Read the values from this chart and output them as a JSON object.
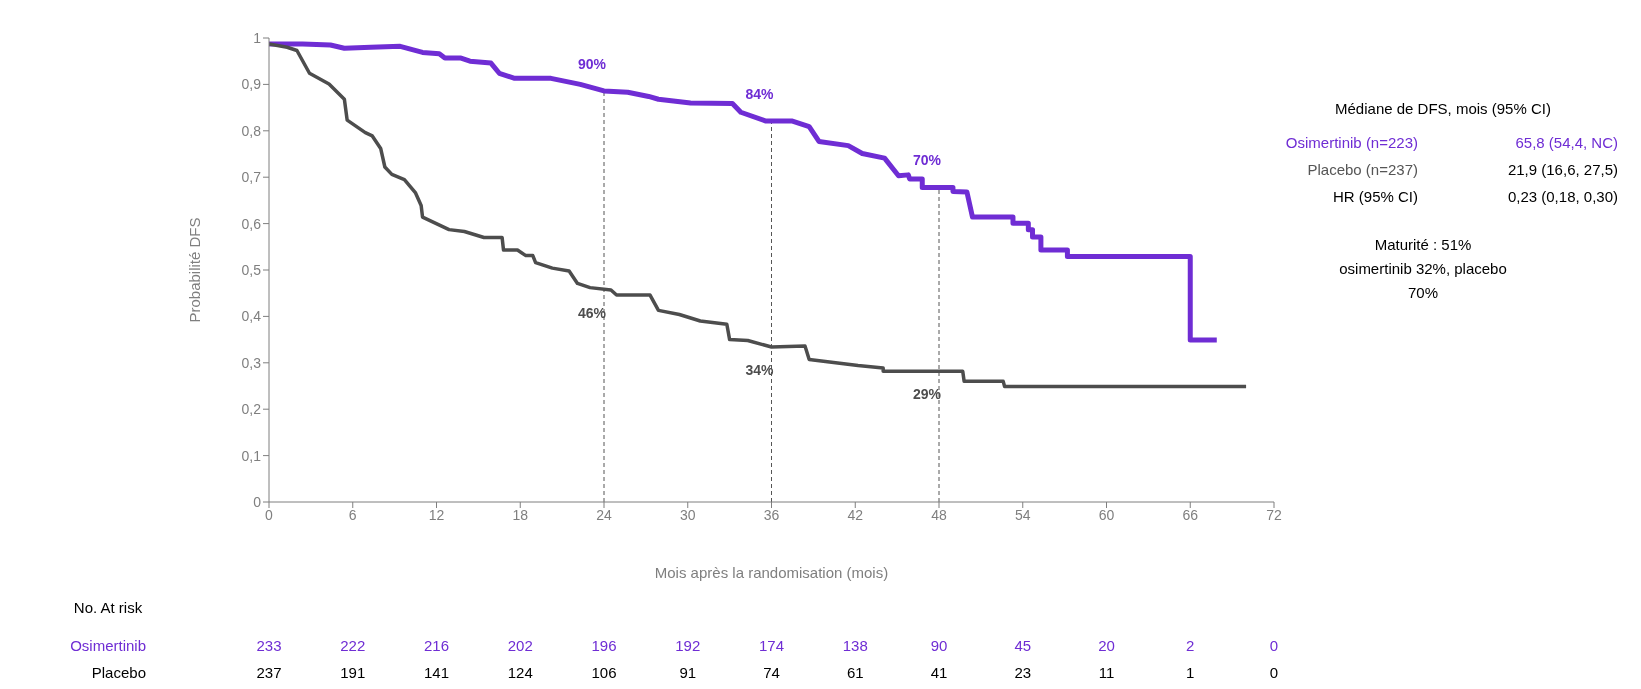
{
  "chart_data": {
    "type": "line",
    "xlabel": "Mois après la randomisation (mois)",
    "ylabel": "Probabilité DFS",
    "xlim": [
      0,
      72
    ],
    "ylim": [
      0,
      1
    ],
    "xticks": [
      0,
      6,
      12,
      18,
      24,
      30,
      36,
      42,
      48,
      54,
      60,
      66,
      72
    ],
    "yticks": [
      0,
      {
        "value": 0.1,
        "label": "0,1"
      },
      {
        "value": 0.2,
        "label": "0,2"
      },
      {
        "value": 0.3,
        "label": "0,3"
      },
      {
        "value": 0.4,
        "label": "0,4"
      },
      {
        "value": 0.5,
        "label": "0,5"
      },
      {
        "value": 0.6,
        "label": "0,6"
      },
      {
        "value": 0.7,
        "label": "0,7"
      },
      {
        "value": 0.8,
        "label": "0,8"
      },
      {
        "value": 0.9,
        "label": "0,9"
      },
      1
    ],
    "grid": false,
    "marker": "none",
    "line_style": "solid",
    "series": [
      {
        "color": "#6f2dd4",
        "x": [
          0,
          2.4,
          4.4,
          5.4,
          7.3,
          9.4,
          11,
          12.2,
          12.6,
          13.7,
          14.4,
          15.9,
          16.5,
          17.6,
          20.2,
          22.3,
          24,
          25.7,
          27.2,
          27.9,
          30.2,
          33.2,
          33.8,
          35.6,
          37.5,
          38.7,
          39.4,
          41.5,
          42.5,
          44.1,
          45.1,
          45.8,
          45.9,
          46.8,
          46.8,
          49,
          49,
          50,
          50.4,
          53.3,
          53.3,
          54.4,
          54.4,
          54.7,
          54.7,
          55.3,
          55.3,
          57.2,
          57.2,
          66,
          66,
          67.9
        ],
        "values": [
          0.987,
          0.987,
          0.985,
          0.978,
          0.98,
          0.982,
          0.969,
          0.966,
          0.957,
          0.957,
          0.95,
          0.946,
          0.924,
          0.913,
          0.913,
          0.9,
          0.886,
          0.883,
          0.874,
          0.868,
          0.86,
          0.859,
          0.84,
          0.821,
          0.821,
          0.809,
          0.777,
          0.768,
          0.751,
          0.741,
          0.703,
          0.705,
          0.696,
          0.696,
          0.678,
          0.678,
          0.669,
          0.668,
          0.614,
          0.614,
          0.601,
          0.601,
          0.587,
          0.587,
          0.571,
          0.571,
          0.543,
          0.543,
          0.529,
          0.529,
          0.349,
          0.349
        ]
      },
      {
        "color": "#4d4d4d",
        "x": [
          0,
          1.3,
          2,
          2.9,
          4.3,
          5.4,
          5.6,
          6.9,
          7.4,
          8,
          8.3,
          8.8,
          9.7,
          10.5,
          10.9,
          11,
          12.9,
          14,
          15.4,
          16.7,
          16.8,
          17.8,
          18.4,
          18.9,
          19.1,
          20.3,
          21.5,
          22.1,
          23,
          24.5,
          24.9,
          27.3,
          27.9,
          29.4,
          30.9,
          32.8,
          33,
          34.3,
          36,
          38.4,
          38.7,
          42.2,
          44,
          44,
          49.7,
          49.8,
          52.6,
          52.7,
          70
        ],
        "values": [
          0.987,
          0.98,
          0.973,
          0.924,
          0.901,
          0.868,
          0.823,
          0.796,
          0.789,
          0.762,
          0.722,
          0.706,
          0.695,
          0.666,
          0.639,
          0.614,
          0.587,
          0.583,
          0.57,
          0.57,
          0.543,
          0.543,
          0.531,
          0.531,
          0.516,
          0.504,
          0.498,
          0.471,
          0.462,
          0.457,
          0.446,
          0.446,
          0.413,
          0.404,
          0.39,
          0.383,
          0.35,
          0.348,
          0.334,
          0.336,
          0.307,
          0.294,
          0.289,
          0.282,
          0.282,
          0.26,
          0.26,
          0.249,
          0.249
        ]
      }
    ],
    "ref_lines": [
      {
        "axis": "x",
        "value": 24,
        "color": "#555555",
        "line_style": "dashed"
      },
      {
        "axis": "x",
        "value": 36,
        "color": "#555555",
        "line_style": "dashed"
      },
      {
        "axis": "x",
        "value": 48,
        "color": "#555555",
        "line_style": "dashed"
      }
    ],
    "annotations": [
      {
        "text": "90%",
        "x": 24,
        "y": 0.886
      },
      {
        "text": "84%",
        "x": 36,
        "y": 0.821
      },
      {
        "text": "70%",
        "x": 48,
        "y": 0.678
      },
      {
        "text": "46%",
        "x": 24,
        "y": 0.457
      },
      {
        "text": "34%",
        "x": 36,
        "y": 0.334
      },
      {
        "text": "29%",
        "x": 48,
        "y": 0.282
      },
      "Médiane de DFS, mois (95% CI)",
      "Osimertinib (n=223)",
      "65,8 (54,4, NC)",
      "Placebo (n=237)",
      "21,9 (16,6, 27,5)",
      "HR (95% CI)",
      "0,23 (0,18, 0,30)",
      "Maturité  : 51%",
      "osimertinib 32%, placebo",
      "70%",
      "No. At risk",
      "Osimertinib",
      "Placebo",
      "233",
      "222",
      "216",
      "202",
      "196",
      "192",
      "174",
      "138",
      "90",
      "45",
      "20",
      "2",
      "0",
      "237",
      "191",
      "141",
      "124",
      "106",
      "91",
      "74",
      "61",
      "41",
      "23",
      "11",
      "1",
      "0"
    ]
  }
}
